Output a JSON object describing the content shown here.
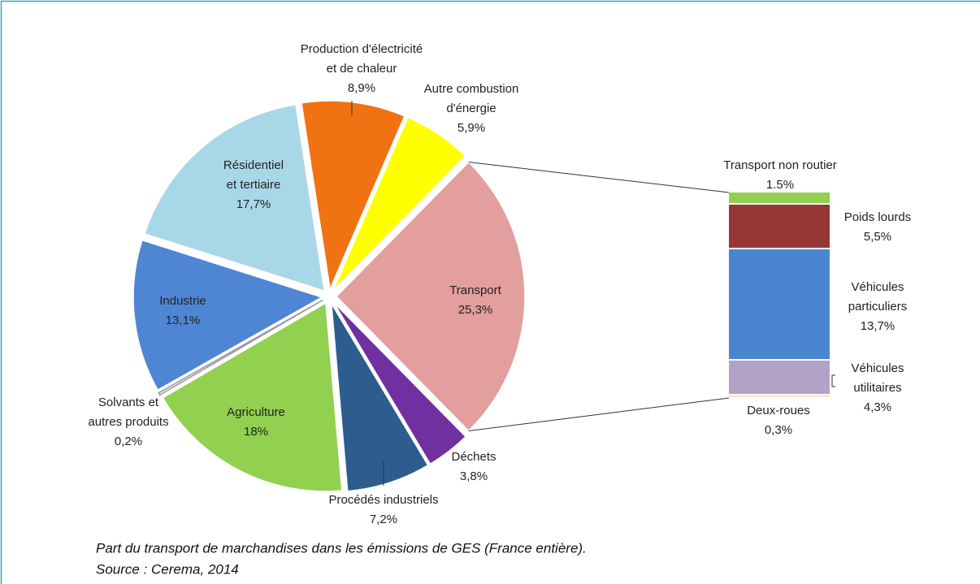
{
  "chart_data": {
    "type": "pie-of-bar",
    "categories": [
      "Transport",
      "Déchets",
      "Procédés industriels",
      "Agriculture",
      "Solvants et\nautres produits",
      "Industrie",
      "Résidentiel\net tertiaire",
      "Production d'électricité\net de chaleur",
      "Autre combustion\nd'énergie"
    ],
    "values": [
      25.3,
      3.8,
      7.2,
      18,
      0.2,
      13.1,
      17.7,
      8.9,
      5.9
    ],
    "value_labels": [
      "25,3%",
      "3,8%",
      "7,2%",
      "18%",
      "0,2%",
      "13,1%",
      "17,7%",
      "8,9%",
      "5,9%"
    ],
    "colors": [
      "#e39e9e",
      "#7030a0",
      "#2d5d8e",
      "#92d050",
      "#f2f2f2",
      "#4f86d4",
      "#a8d8e8",
      "#f07212",
      "#ffff00"
    ],
    "bar": {
      "categories": [
        "Transport non routier",
        "Poids lourds",
        "Véhicules\nparticuliers",
        "Véhicules\nutilitaires",
        "Deux-roues"
      ],
      "values": [
        1.5,
        5.5,
        13.7,
        4.3,
        0.3
      ],
      "value_labels": [
        "1.5%",
        "5,5%",
        "13,7%",
        "4,3%",
        "0,3%"
      ],
      "colors": [
        "#92d050",
        "#953735",
        "#4a86d0",
        "#b3a2c7",
        "#fac090"
      ]
    },
    "caption": [
      "Part du transport de marchandises dans les émissions de GES (France entière).",
      "Source : Cerema, 2014"
    ]
  }
}
